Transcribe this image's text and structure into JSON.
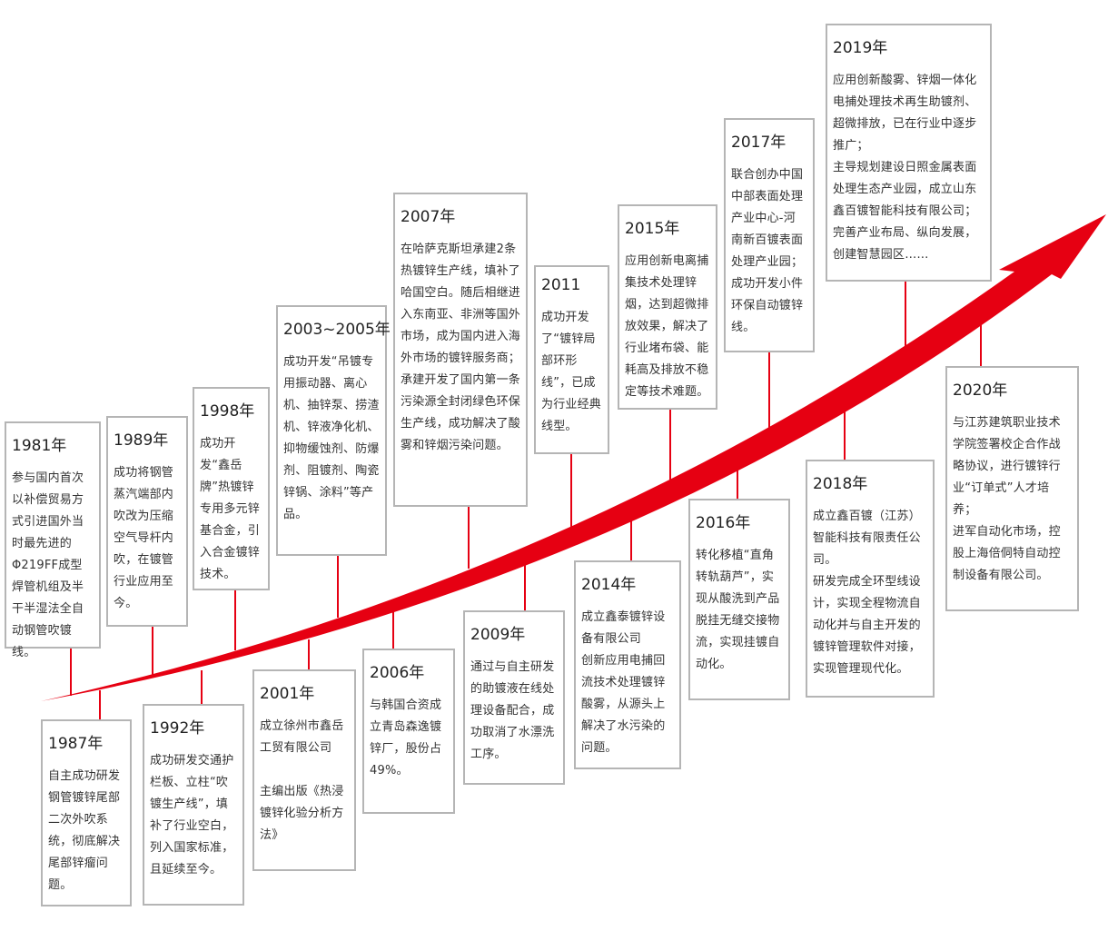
{
  "colors": {
    "accent": "#e60012",
    "border": "#b5b5b5",
    "text": "#333333"
  },
  "milestones": [
    {
      "year": "1981年",
      "paragraphs": [
        "参与国内首次以补偿贸易方式引进国外当时最先进的Φ219FF成型焊管机组及半干半湿法全自动钢管吹镀线。"
      ]
    },
    {
      "year": "1987年",
      "paragraphs": [
        "自主成功研发钢管镀锌尾部二次外吹系统，彻底解决尾部锌瘤问题。"
      ]
    },
    {
      "year": "1989年",
      "paragraphs": [
        "成功将钢管蒸汽端部内吹改为压缩空气导杆内吹，在镀管行业应用至今。"
      ]
    },
    {
      "year": "1992年",
      "paragraphs": [
        "成功研发交通护栏板、立柱“吹镀生产线”，填补了行业空白，列入国家标准，且延续至今。"
      ]
    },
    {
      "year": "1998年",
      "paragraphs": [
        "成功开发“鑫岳牌”热镀锌专用多元锌基合金，引入合金镀锌技术。"
      ]
    },
    {
      "year": "2001年",
      "paragraphs": [
        "成立徐州市鑫岳工贸有限公司",
        "",
        "主编出版《热浸镀锌化验分析方法》"
      ]
    },
    {
      "year": "2003~2005年",
      "paragraphs": [
        "成功开发“吊镀专用振动器、离心机、抽锌泵、捞渣机、锌液净化机、抑物缓蚀剂、防爆剂、阻镀剂、陶瓷锌锅、涂料”等产品。"
      ]
    },
    {
      "year": "2006年",
      "paragraphs": [
        "与韩国合资成立青岛森逸镀锌厂，股份占49%。"
      ]
    },
    {
      "year": "2007年",
      "paragraphs": [
        "在哈萨克斯坦承建2条热镀锌生产线，填补了哈国空白。随后相继进入东南亚、非洲等国外市场，成为国内进入海外市场的镀锌服务商；",
        "承建开发了国内第一条污染源全封闭绿色环保生产线，成功解决了酸雾和锌烟污染问题。"
      ]
    },
    {
      "year": "2009年",
      "paragraphs": [
        "通过与自主研发的助镀液在线处理设备配合，成功取消了水漂洗工序。"
      ]
    },
    {
      "year": "2011",
      "paragraphs": [
        "成功开发了“镀锌局部环形线”，已成为行业经典线型。"
      ]
    },
    {
      "year": "2014年",
      "paragraphs": [
        "成立鑫泰镀锌设备有限公司",
        "创新应用电捕回流技术处理镀锌酸雾，从源头上解决了水污染的问题。"
      ]
    },
    {
      "year": "2015年",
      "paragraphs": [
        "应用创新电离捕集技术处理锌烟，达到超微排放效果，解决了行业堵布袋、能耗高及排放不稳定等技术难题。"
      ]
    },
    {
      "year": "2016年",
      "paragraphs": [
        "转化移植“直角转轨葫芦”，实现从酸洗到产品脱挂无缝交接物流，实现挂镀自动化。"
      ]
    },
    {
      "year": "2017年",
      "paragraphs": [
        "联合创办中国中部表面处理产业中心-河南新百镀表面处理产业园；",
        "成功开发小件环保自动镀锌线。"
      ]
    },
    {
      "year": "2018年",
      "paragraphs": [
        "成立鑫百镀（江苏）智能科技有限责任公司。",
        "研发完成全环型线设计，实现全程物流自动化并与自主开发的镀锌管理软件对接，实现管理现代化。"
      ]
    },
    {
      "year": "2019年",
      "paragraphs": [
        "应用创新酸雾、锌烟一体化电捕处理技术再生助镀剂、超微排放，已在行业中逐步推广；",
        "主导规划建设日照金属表面处理生态产业园，成立山东鑫百镀智能科技有限公司；",
        "完善产业布局、纵向发展，创建智慧园区……"
      ]
    },
    {
      "year": "2020年",
      "paragraphs": [
        "与江苏建筑职业技术学院签署校企合作战略协议，进行镀锌行业“订单式”人才培养；",
        "进军自动化市场，控股上海倍侗特自动控制设备有限公司。"
      ]
    }
  ]
}
